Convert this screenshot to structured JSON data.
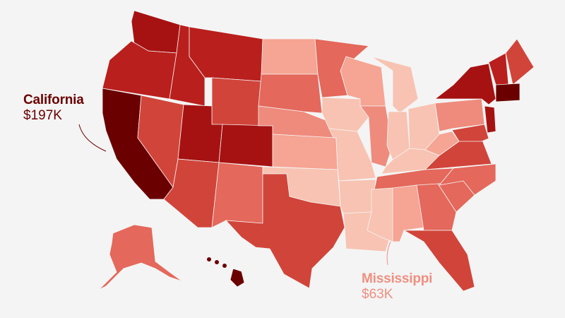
{
  "colors": {
    "background": "#f4f4f4",
    "level_1": "#6b0000",
    "level_2": "#a61212",
    "level_3": "#b91f1c",
    "level_4": "#d1443a",
    "level_5": "#e4685b",
    "level_6": "#ee8b7d",
    "level_7": "#f6a493",
    "level_8": "#f8c3b2",
    "highlight_high_text": "#6b0000",
    "highlight_low_text": "#ef8f80"
  },
  "states": [
    {
      "name": "Washington",
      "level": "level_2"
    },
    {
      "name": "Oregon",
      "level": "level_3"
    },
    {
      "name": "California",
      "level": "level_1"
    },
    {
      "name": "Nevada",
      "level": "level_4"
    },
    {
      "name": "Idaho",
      "level": "level_3"
    },
    {
      "name": "Montana",
      "level": "level_3"
    },
    {
      "name": "Wyoming",
      "level": "level_4"
    },
    {
      "name": "Utah",
      "level": "level_2"
    },
    {
      "name": "Colorado",
      "level": "level_2"
    },
    {
      "name": "Arizona",
      "level": "level_4"
    },
    {
      "name": "New Mexico",
      "level": "level_5"
    },
    {
      "name": "North Dakota",
      "level": "level_7"
    },
    {
      "name": "South Dakota",
      "level": "level_5"
    },
    {
      "name": "Nebraska",
      "level": "level_6"
    },
    {
      "name": "Kansas",
      "level": "level_7"
    },
    {
      "name": "Oklahoma",
      "level": "level_8"
    },
    {
      "name": "Texas",
      "level": "level_4"
    },
    {
      "name": "Minnesota",
      "level": "level_5"
    },
    {
      "name": "Iowa",
      "level": "level_8"
    },
    {
      "name": "Missouri",
      "level": "level_8"
    },
    {
      "name": "Arkansas",
      "level": "level_8"
    },
    {
      "name": "Louisiana",
      "level": "level_8"
    },
    {
      "name": "Wisconsin",
      "level": "level_7"
    },
    {
      "name": "Illinois",
      "level": "level_6"
    },
    {
      "name": "Michigan",
      "level": "level_8"
    },
    {
      "name": "Indiana",
      "level": "level_8"
    },
    {
      "name": "Ohio",
      "level": "level_8"
    },
    {
      "name": "Kentucky",
      "level": "level_8"
    },
    {
      "name": "Tennessee",
      "level": "level_5"
    },
    {
      "name": "Mississippi",
      "level": "level_8"
    },
    {
      "name": "Alabama",
      "level": "level_7"
    },
    {
      "name": "Georgia",
      "level": "level_5"
    },
    {
      "name": "Florida",
      "level": "level_4"
    },
    {
      "name": "South Carolina",
      "level": "level_5"
    },
    {
      "name": "North Carolina",
      "level": "level_5"
    },
    {
      "name": "Virginia",
      "level": "level_4"
    },
    {
      "name": "West Virginia",
      "level": "level_7"
    },
    {
      "name": "Pennsylvania",
      "level": "level_6"
    },
    {
      "name": "New York",
      "level": "level_2"
    },
    {
      "name": "New Jersey",
      "level": "level_2"
    },
    {
      "name": "Maryland",
      "level": "level_4"
    },
    {
      "name": "New Hampshire",
      "level": "level_3"
    },
    {
      "name": "Maine",
      "level": "level_4"
    },
    {
      "name": "Massachusetts",
      "level": "level_1"
    },
    {
      "name": "Alaska",
      "level": "level_5"
    },
    {
      "name": "Hawaii",
      "level": "level_1"
    }
  ],
  "callouts": {
    "high": {
      "state": "California",
      "value": "$197K"
    },
    "low": {
      "state": "Mississippi",
      "value": "$63K"
    }
  }
}
